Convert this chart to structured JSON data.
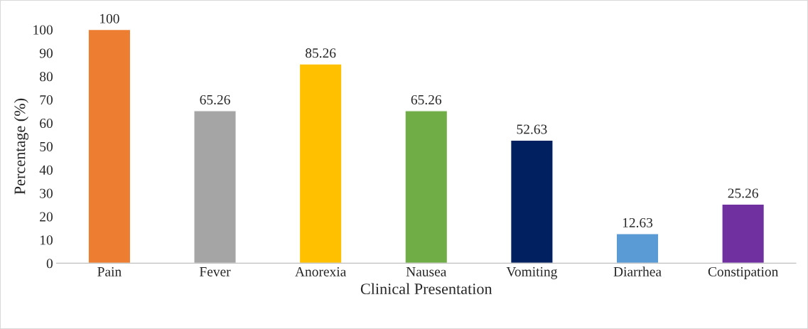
{
  "chart_data": {
    "type": "bar",
    "xlabel": "Clinical Presentation",
    "ylabel": "Percentage (%)",
    "categories": [
      "Pain",
      "Fever",
      "Anorexia",
      "Nausea",
      "Vomiting",
      "Diarrhea",
      "Constipation"
    ],
    "values": [
      100,
      65.26,
      85.26,
      65.26,
      52.63,
      12.63,
      25.26
    ],
    "colors": [
      "#ed7d31",
      "#a5a5a5",
      "#ffc000",
      "#70ad47",
      "#002060",
      "#5b9bd5",
      "#7030a0"
    ],
    "ylim": [
      0,
      100
    ],
    "yticks": [
      0,
      10,
      20,
      30,
      40,
      50,
      60,
      70,
      80,
      90,
      100
    ],
    "data_labels": true,
    "grid": false
  }
}
